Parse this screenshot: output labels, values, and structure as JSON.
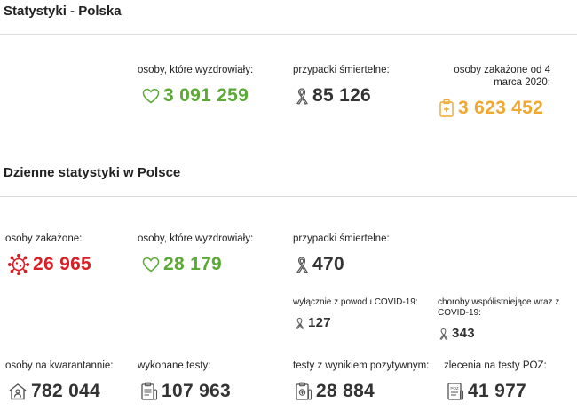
{
  "colors": {
    "green": "#5aaa35",
    "orange": "#f0a830",
    "red": "#d81f26",
    "dark": "#333333"
  },
  "poland": {
    "title": "Statystyki - Polska",
    "recovered_label": "osoby, które wyzdrowiały:",
    "recovered_value": "3 091 259",
    "deaths_label": "przypadki śmiertelne:",
    "deaths_value": "85 126",
    "infected_label": "osoby zakażone od 4 marca 2020:",
    "infected_value": "3 623 452"
  },
  "daily": {
    "title": "Dzienne statystyki w Polsce",
    "infected_label": "osoby zakażone:",
    "infected_value": "26 965",
    "recovered_label": "osoby, które wyzdrowiały:",
    "recovered_value": "28 179",
    "deaths_label": "przypadki śmiertelne:",
    "deaths_value": "470",
    "covid_only_label": "wyłącznie z powodu COVID-19:",
    "covid_only_value": "127",
    "comorbid_label": "choroby współistniejące wraz z COVID-19:",
    "comorbid_value": "343",
    "quarantine_label": "osoby na kwarantannie:",
    "quarantine_value": "782 044",
    "tests_label": "wykonane testy:",
    "tests_value": "107 963",
    "positive_tests_label": "testy z wynikiem pozytywnym:",
    "positive_tests_value": "28 884",
    "poz_orders_label": "zlecenia na testy POZ:",
    "poz_orders_value": "41 977"
  },
  "icons": [
    "heart-icon",
    "ribbon-icon",
    "medical-kit-icon",
    "virus-icon",
    "house-person-icon",
    "clipboard-icon",
    "test-tube-icon",
    "poz-tablet-icon"
  ]
}
